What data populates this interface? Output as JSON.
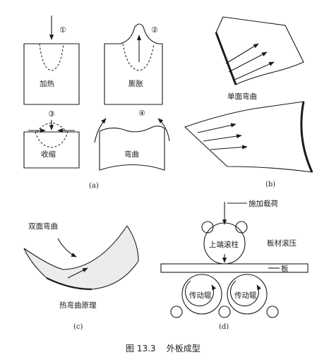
{
  "figure": {
    "caption": "图 13.3    外板成型",
    "panel_a": {
      "label": "(a)",
      "steps": [
        {
          "num": "①",
          "text": "加热"
        },
        {
          "num": "②",
          "text": "膨胀"
        },
        {
          "num": "③",
          "text": "收缩"
        },
        {
          "num": "④",
          "text": "弯曲"
        }
      ]
    },
    "panel_b": {
      "label": "(b)",
      "top_text": "单面弯曲"
    },
    "panel_c": {
      "label": "(c)",
      "top_text": "双面弯曲",
      "bottom_text": "热弯曲原理"
    },
    "panel_d": {
      "label": "(d)",
      "load_text": "施加载荷",
      "upper_roller": "上端滚柱",
      "process_text": "板材滚压",
      "plate_text": "板",
      "drive_left": "传动辊",
      "drive_right": "传动辊"
    }
  }
}
